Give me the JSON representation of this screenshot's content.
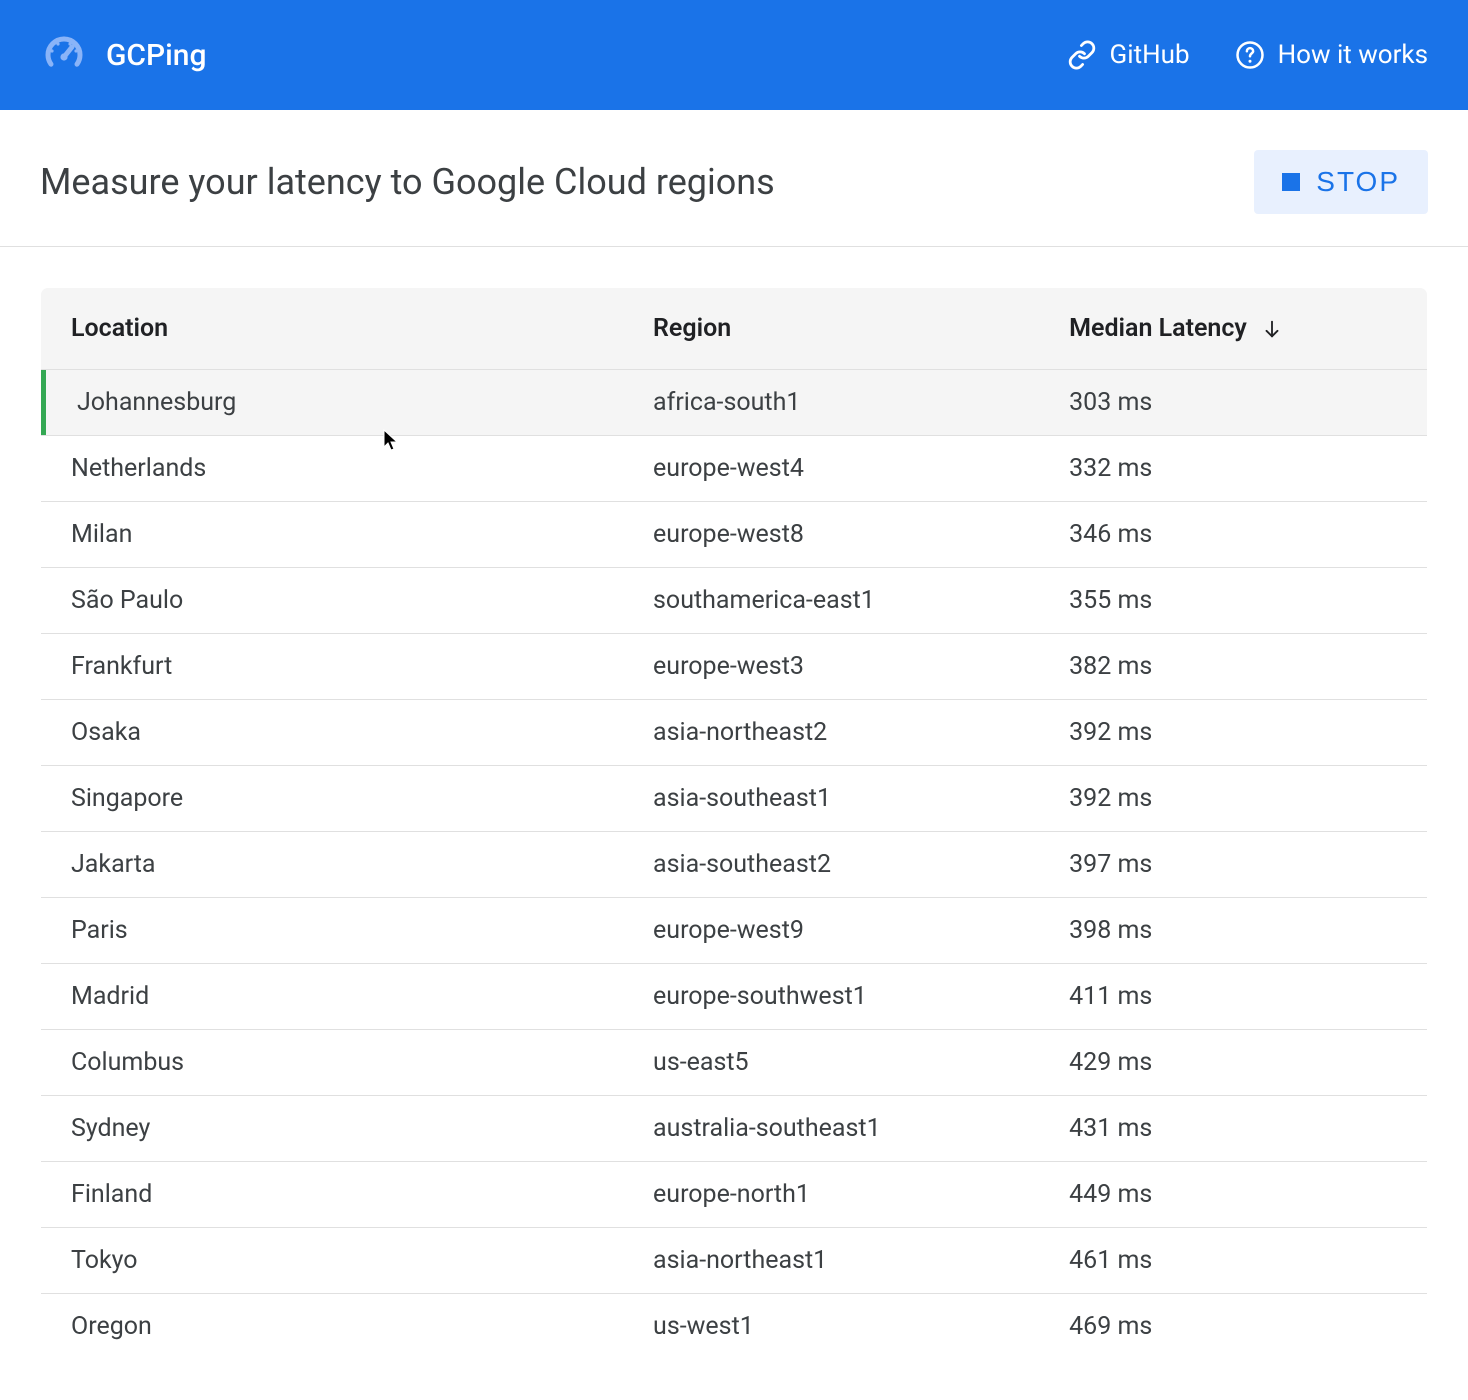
{
  "header": {
    "app_name": "GCPing",
    "github_label": "GitHub",
    "how_it_works_label": "How it works"
  },
  "subheader": {
    "title": "Measure your latency to Google Cloud regions",
    "stop_button_label": "STOP"
  },
  "colors": {
    "header_bg": "#1a73e8",
    "accent_blue": "#1a73e8",
    "stop_button_bg": "#e8f0fe",
    "row_indicator": "#34a853",
    "text_primary": "#3c4043",
    "text_dark": "#202124",
    "border": "#e0e0e0",
    "table_header_bg": "#f5f5f5",
    "logo_icon": "#8ab4f8"
  },
  "table": {
    "columns": {
      "location": "Location",
      "region": "Region",
      "latency": "Median Latency"
    },
    "sort_column": "latency",
    "sort_direction": "asc",
    "rows": [
      {
        "location": "Johannesburg",
        "region": "africa-south1",
        "latency": "303 ms",
        "hovered": true
      },
      {
        "location": "Netherlands",
        "region": "europe-west4",
        "latency": "332 ms",
        "hovered": false
      },
      {
        "location": "Milan",
        "region": "europe-west8",
        "latency": "346 ms",
        "hovered": false
      },
      {
        "location": "São Paulo",
        "region": "southamerica-east1",
        "latency": "355 ms",
        "hovered": false
      },
      {
        "location": "Frankfurt",
        "region": "europe-west3",
        "latency": "382 ms",
        "hovered": false
      },
      {
        "location": "Osaka",
        "region": "asia-northeast2",
        "latency": "392 ms",
        "hovered": false
      },
      {
        "location": "Singapore",
        "region": "asia-southeast1",
        "latency": "392 ms",
        "hovered": false
      },
      {
        "location": "Jakarta",
        "region": "asia-southeast2",
        "latency": "397 ms",
        "hovered": false
      },
      {
        "location": "Paris",
        "region": "europe-west9",
        "latency": "398 ms",
        "hovered": false
      },
      {
        "location": "Madrid",
        "region": "europe-southwest1",
        "latency": "411 ms",
        "hovered": false
      },
      {
        "location": "Columbus",
        "region": "us-east5",
        "latency": "429 ms",
        "hovered": false
      },
      {
        "location": "Sydney",
        "region": "australia-southeast1",
        "latency": "431 ms",
        "hovered": false
      },
      {
        "location": "Finland",
        "region": "europe-north1",
        "latency": "449 ms",
        "hovered": false
      },
      {
        "location": "Tokyo",
        "region": "asia-northeast1",
        "latency": "461 ms",
        "hovered": false
      },
      {
        "location": "Oregon",
        "region": "us-west1",
        "latency": "469 ms",
        "hovered": false
      }
    ]
  }
}
